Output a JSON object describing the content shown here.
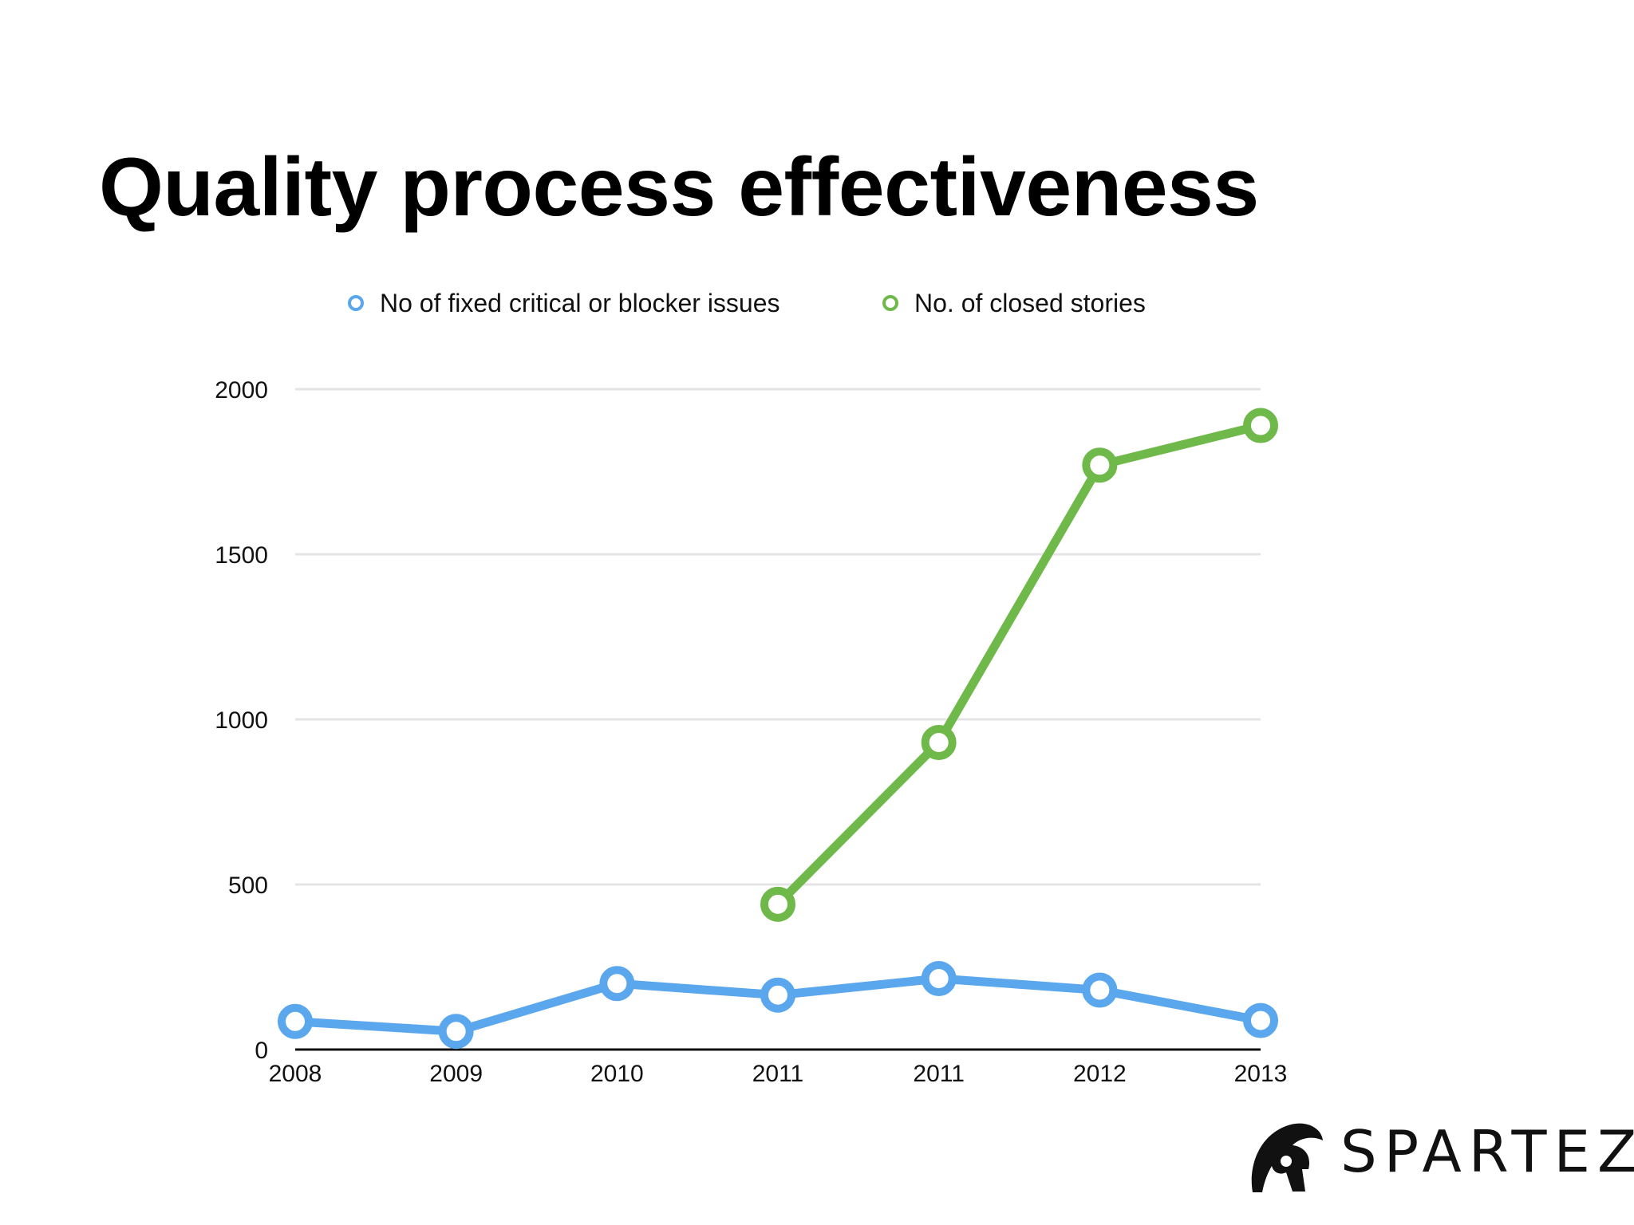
{
  "slide": {
    "title": "Quality process effectiveness"
  },
  "brand": {
    "name": "SPARTEZ",
    "icon": "spartan-helmet-icon"
  },
  "chart_data": {
    "type": "line",
    "categories": [
      "2008",
      "2009",
      "2010",
      "2011",
      "2011",
      "2012",
      "2013"
    ],
    "series": [
      {
        "name": "No of fixed critical or blocker issues",
        "color": "#5aa7ee",
        "values": [
          85,
          55,
          200,
          165,
          215,
          180,
          88
        ]
      },
      {
        "name": "No. of closed stories",
        "color": "#6fb84a",
        "values": [
          null,
          null,
          null,
          440,
          930,
          1770,
          1890
        ]
      }
    ],
    "yticks": [
      0,
      500,
      1000,
      1500,
      2000
    ],
    "ylim": [
      0,
      2000
    ],
    "grid": true,
    "legend_position": "top"
  }
}
